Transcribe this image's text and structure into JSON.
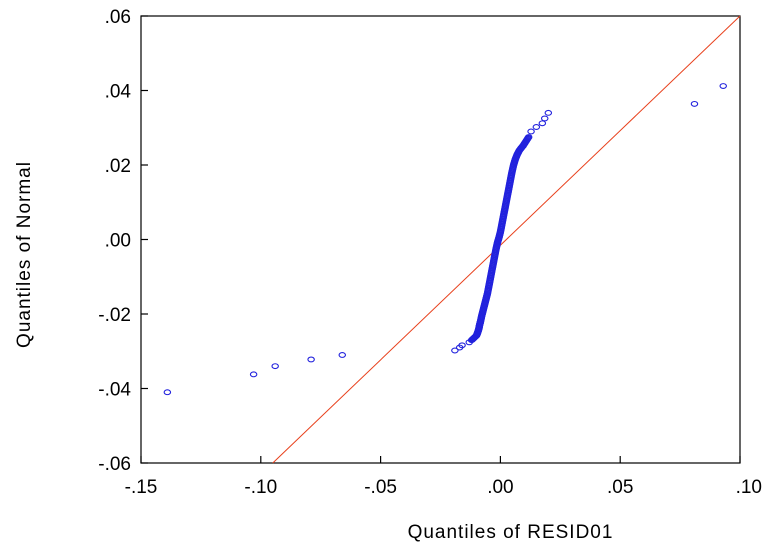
{
  "chart_data": {
    "type": "scatter",
    "title": "",
    "xlabel": "Quantiles of RESID01",
    "ylabel": "Quantiles of Normal",
    "xlim": [
      -0.15,
      0.1
    ],
    "ylim": [
      -0.06,
      0.06
    ],
    "grid": false,
    "x_ticks": [
      {
        "value": -0.15,
        "label": "-.15"
      },
      {
        "value": -0.1,
        "label": "-.10"
      },
      {
        "value": -0.05,
        "label": "-.05"
      },
      {
        "value": 0.0,
        "label": ".00"
      },
      {
        "value": 0.05,
        "label": ".05"
      },
      {
        "value": 0.1,
        "label": ".10"
      }
    ],
    "y_ticks": [
      {
        "value": -0.06,
        "label": "-.06"
      },
      {
        "value": -0.04,
        "label": "-.04"
      },
      {
        "value": -0.02,
        "label": "-.02"
      },
      {
        "value": 0.0,
        "label": ".00"
      },
      {
        "value": 0.02,
        "label": ".02"
      },
      {
        "value": 0.04,
        "label": ".04"
      },
      {
        "value": 0.06,
        "label": ".06"
      }
    ],
    "reference_line": {
      "x": [
        -0.095,
        0.1
      ],
      "y": [
        -0.06,
        0.06
      ],
      "color": "#e8401c"
    },
    "marker_color": "#2222dd",
    "points": {
      "x": [
        -0.139,
        -0.103,
        -0.094,
        -0.079,
        -0.066,
        -0.019,
        -0.017,
        -0.016,
        -0.013,
        -0.012,
        -0.011,
        -0.01,
        -0.0095,
        -0.009,
        -0.0087,
        -0.0083,
        -0.0078,
        -0.0072,
        -0.0066,
        -0.006,
        -0.0054,
        -0.0048,
        -0.0042,
        -0.0036,
        -0.003,
        -0.0024,
        -0.0018,
        -0.0012,
        -0.0006,
        0.0,
        0.0006,
        0.0012,
        0.0018,
        0.0024,
        0.003,
        0.0036,
        0.0042,
        0.0048,
        0.0055,
        0.0062,
        0.007,
        0.0078,
        0.0086,
        0.0095,
        0.0105,
        0.0118,
        0.0128,
        0.015,
        0.0175,
        0.0185,
        0.02,
        0.081,
        0.093
      ],
      "y": [
        -0.041,
        -0.0362,
        -0.034,
        -0.0322,
        -0.031,
        -0.0298,
        -0.029,
        -0.0284,
        -0.0276,
        -0.027,
        -0.0264,
        -0.0258,
        -0.025,
        -0.024,
        -0.023,
        -0.022,
        -0.0205,
        -0.019,
        -0.0175,
        -0.016,
        -0.0145,
        -0.0125,
        -0.0105,
        -0.0085,
        -0.0065,
        -0.0045,
        -0.0025,
        -0.0008,
        0.0005,
        0.002,
        0.004,
        0.006,
        0.008,
        0.01,
        0.012,
        0.014,
        0.016,
        0.018,
        0.02,
        0.0215,
        0.0228,
        0.0238,
        0.0245,
        0.0252,
        0.0262,
        0.0275,
        0.029,
        0.0302,
        0.0312,
        0.0325,
        0.034,
        0.0364,
        0.0412
      ]
    }
  }
}
